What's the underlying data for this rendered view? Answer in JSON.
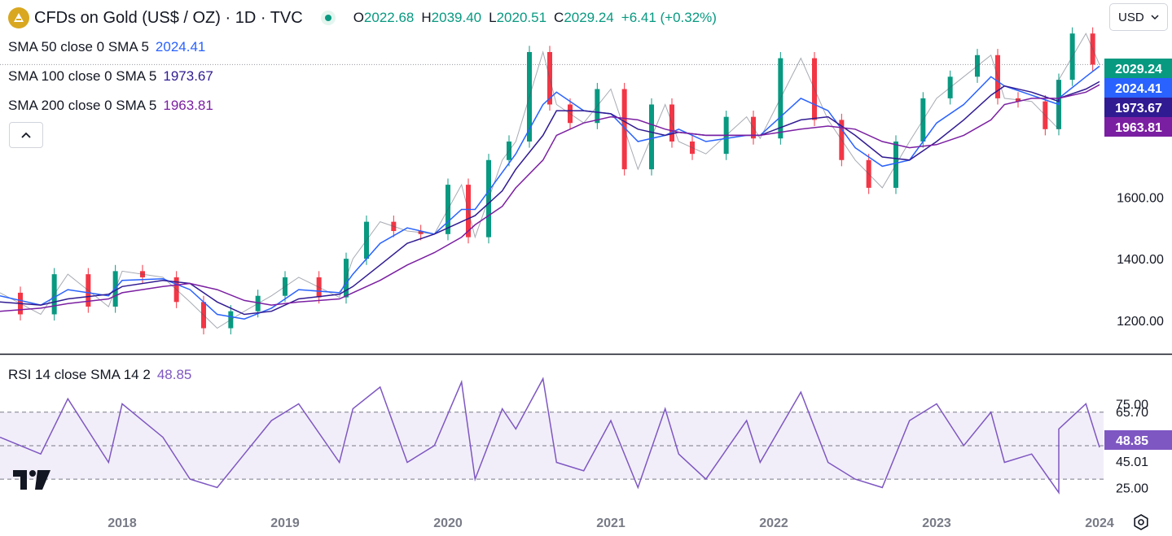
{
  "header": {
    "title": "CFDs on Gold (US$ / OZ) · 1D · TVC",
    "ohlc": [
      {
        "label": "O",
        "value": "2022.68"
      },
      {
        "label": "H",
        "value": "2039.40"
      },
      {
        "label": "L",
        "value": "2020.51"
      },
      {
        "label": "C",
        "value": "2029.24"
      }
    ],
    "change": "+6.41 (+0.32%)",
    "currency": "USD"
  },
  "indicators": [
    {
      "label": "SMA 50 close 0 SMA 5",
      "value": "2024.41",
      "color": "#2962ff"
    },
    {
      "label": "SMA 100 close 0 SMA 5",
      "value": "1973.67",
      "color": "#311b92"
    },
    {
      "label": "SMA 200 close 0 SMA 5",
      "value": "1963.81",
      "color": "#7b1fa2"
    }
  ],
  "rsi": {
    "label": "RSI 14 close SMA 14 2",
    "value": "48.85",
    "color": "#7e57c2"
  },
  "icons": [
    "gold-logo-icon",
    "live-status-icon",
    "chevron-up-icon",
    "chevron-down-icon",
    "tradingview-logo-icon",
    "settings-icon"
  ],
  "chart_data": [
    {
      "type": "candlestick",
      "title": "CFDs on Gold (US$ / OZ) · 1D · TVC",
      "x_ticks": [
        "2018",
        "2019",
        "2020",
        "2021",
        "2022",
        "2023",
        "2024"
      ],
      "y_ticks": [
        "1200.00",
        "1400.00",
        "1600.00"
      ],
      "ylim": [
        1100,
        2120
      ],
      "grid": false,
      "price_labels": [
        {
          "value": "2029.24",
          "color": "#089981"
        },
        {
          "value": "2024.41",
          "color": "#2962ff"
        },
        {
          "value": "1973.67",
          "color": "#311b92"
        },
        {
          "value": "1963.81",
          "color": "#7b1fa2"
        }
      ],
      "x": [
        "2017-04",
        "2017-07",
        "2017-09",
        "2017-12",
        "2018-01",
        "2018-04",
        "2018-06",
        "2018-08",
        "2018-10",
        "2018-12",
        "2019-02",
        "2019-05",
        "2019-06",
        "2019-08",
        "2019-10",
        "2019-12",
        "2020-02",
        "2020-03",
        "2020-05",
        "2020-06",
        "2020-08",
        "2020-09",
        "2020-11",
        "2021-01",
        "2021-03",
        "2021-05",
        "2021-06",
        "2021-08",
        "2021-11",
        "2021-12",
        "2022-03",
        "2022-05",
        "2022-07",
        "2022-09",
        "2022-11",
        "2023-01",
        "2023-03",
        "2023-05",
        "2023-06",
        "2023-08",
        "2023-10",
        "2023-10",
        "2023-12",
        "2024-01"
      ],
      "series": [
        {
          "name": "CFDs on Gold (US$ / OZ)",
          "values": [
            1290,
            1220,
            1350,
            1245,
            1360,
            1340,
            1260,
            1175,
            1230,
            1280,
            1340,
            1275,
            1400,
            1520,
            1490,
            1480,
            1640,
            1470,
            1720,
            1780,
            2070,
            1900,
            1840,
            1950,
            1690,
            1900,
            1780,
            1740,
            1860,
            1790,
            2050,
            1850,
            1720,
            1630,
            1780,
            1920,
            1990,
            2060,
            1920,
            1910,
            1820,
            1980,
            2130,
            2029
          ]
        },
        {
          "name": "SMA 50",
          "values": [
            1280,
            1250,
            1300,
            1280,
            1330,
            1335,
            1300,
            1220,
            1205,
            1240,
            1300,
            1290,
            1350,
            1450,
            1500,
            1480,
            1560,
            1560,
            1680,
            1740,
            1900,
            1940,
            1880,
            1870,
            1780,
            1800,
            1820,
            1780,
            1800,
            1800,
            1920,
            1880,
            1760,
            1700,
            1720,
            1840,
            1900,
            1990,
            1960,
            1930,
            1900,
            1920,
            1990,
            2024
          ]
        },
        {
          "name": "SMA 100",
          "values": [
            1260,
            1250,
            1270,
            1285,
            1310,
            1330,
            1320,
            1260,
            1220,
            1230,
            1270,
            1285,
            1310,
            1380,
            1450,
            1480,
            1520,
            1540,
            1620,
            1690,
            1800,
            1880,
            1880,
            1870,
            1820,
            1800,
            1810,
            1800,
            1800,
            1800,
            1850,
            1860,
            1800,
            1730,
            1720,
            1780,
            1850,
            1930,
            1960,
            1940,
            1910,
            1920,
            1950,
            1974
          ]
        },
        {
          "name": "SMA 200",
          "values": [
            1230,
            1240,
            1255,
            1270,
            1290,
            1310,
            1320,
            1300,
            1265,
            1250,
            1260,
            1270,
            1290,
            1330,
            1380,
            1420,
            1470,
            1510,
            1570,
            1630,
            1720,
            1800,
            1840,
            1860,
            1850,
            1820,
            1810,
            1800,
            1800,
            1800,
            1820,
            1830,
            1820,
            1780,
            1760,
            1770,
            1800,
            1850,
            1900,
            1920,
            1920,
            1920,
            1940,
            1964
          ]
        }
      ]
    },
    {
      "type": "line",
      "title": "RSI 14 close SMA 14 2",
      "y_ticks": [
        "75.00",
        "25.00"
      ],
      "ylim": [
        15,
        100
      ],
      "levels": [
        70,
        50,
        30
      ],
      "value_labels": [
        {
          "value": "65.70",
          "color": "#131722"
        },
        {
          "value": "48.85",
          "color": "#7e57c2"
        },
        {
          "value": "45.01",
          "color": "#131722"
        }
      ],
      "x": [
        "2017-04",
        "2017-07",
        "2017-09",
        "2017-12",
        "2018-01",
        "2018-04",
        "2018-06",
        "2018-08",
        "2018-10",
        "2018-12",
        "2019-02",
        "2019-05",
        "2019-06",
        "2019-08",
        "2019-10",
        "2019-12",
        "2020-02",
        "2020-03",
        "2020-05",
        "2020-06",
        "2020-08",
        "2020-09",
        "2020-11",
        "2021-01",
        "2021-03",
        "2021-05",
        "2021-06",
        "2021-08",
        "2021-11",
        "2021-12",
        "2022-03",
        "2022-05",
        "2022-07",
        "2022-09",
        "2022-11",
        "2023-01",
        "2023-03",
        "2023-05",
        "2023-06",
        "2023-08",
        "2023-10",
        "2023-10",
        "2023-12",
        "2024-01"
      ],
      "series": [
        {
          "name": "RSI",
          "values": [
            55,
            45,
            78,
            40,
            75,
            55,
            30,
            25,
            45,
            65,
            75,
            40,
            72,
            85,
            40,
            50,
            88,
            30,
            72,
            60,
            90,
            40,
            35,
            65,
            25,
            72,
            45,
            30,
            65,
            40,
            82,
            40,
            30,
            25,
            65,
            75,
            50,
            70,
            40,
            45,
            22,
            60,
            75,
            49
          ]
        }
      ]
    }
  ]
}
